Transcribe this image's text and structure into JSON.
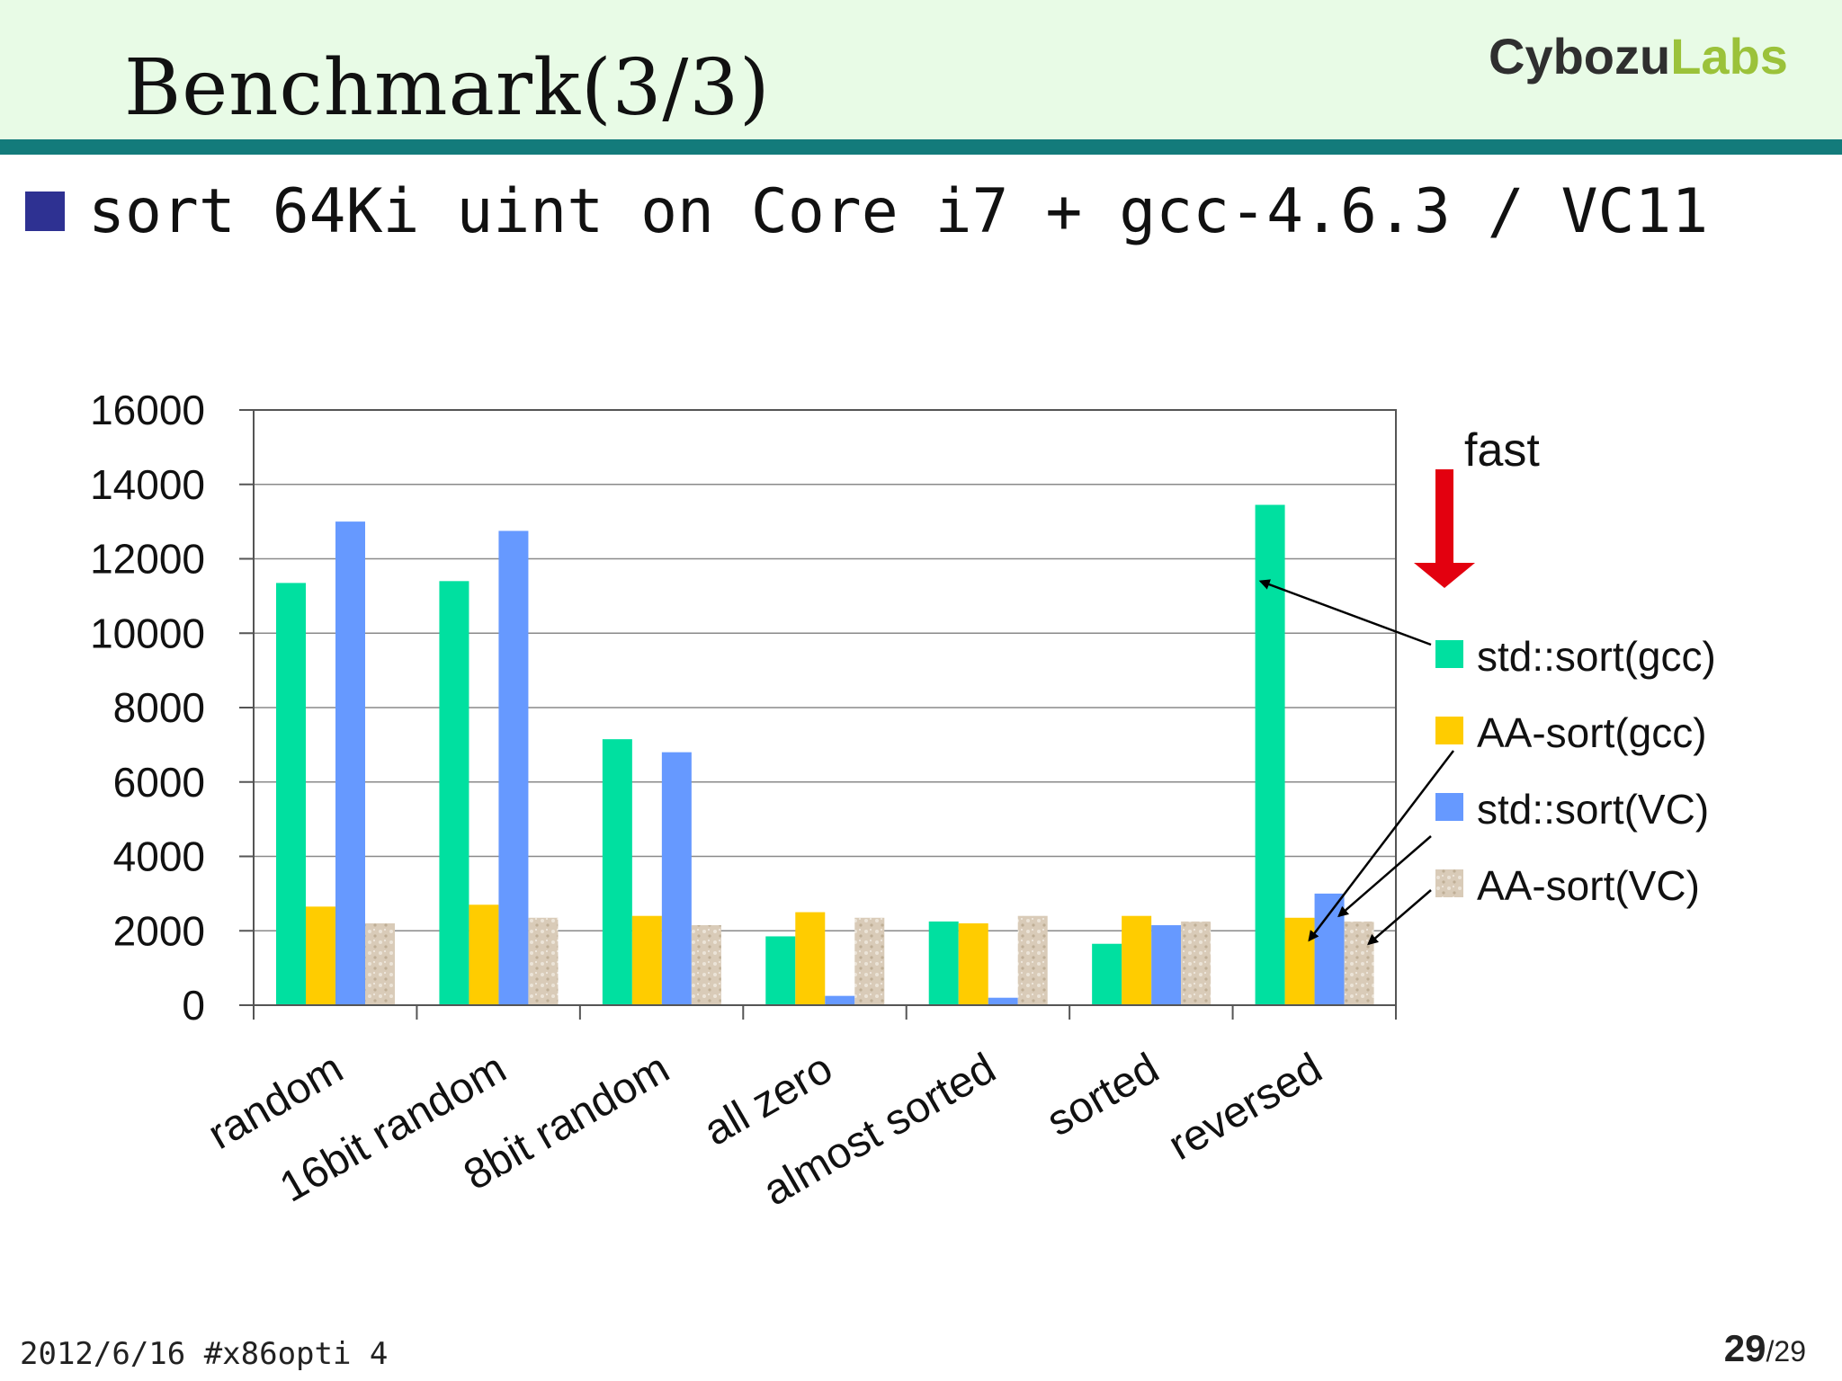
{
  "slide": {
    "title": "Benchmark(3/3)",
    "logo_main": "Cybozu",
    "logo_accent": "Labs",
    "bullet": "sort 64Ki uint on Core i7 + gcc-4.6.3 / VC11",
    "footer_left": "2012/6/16 #x86opti 4",
    "page_current": "29",
    "page_total": "/29"
  },
  "colors": {
    "header_bg": "#e8fbe6",
    "rule": "#137b7b",
    "bullet": "#2e3192",
    "arrow": "#e3000f"
  },
  "chart_data": {
    "type": "bar",
    "categories": [
      "random",
      "16bit random",
      "8bit random",
      "all zero",
      "almost sorted",
      "sorted",
      "reversed"
    ],
    "series": [
      {
        "name": "std::sort(gcc)",
        "color": "#00e0a0",
        "values": [
          11350,
          11400,
          7150,
          1850,
          2250,
          1650,
          13450
        ]
      },
      {
        "name": "AA-sort(gcc)",
        "color": "#ffcc00",
        "values": [
          2650,
          2700,
          2400,
          2500,
          2200,
          2400,
          2350
        ]
      },
      {
        "name": "std::sort(VC)",
        "color": "#6699ff",
        "values": [
          13000,
          12750,
          6800,
          250,
          200,
          2150,
          3000
        ]
      },
      {
        "name": "AA-sort(VC)",
        "color": "#d9cbb8",
        "values": [
          2200,
          2350,
          2150,
          2350,
          2400,
          2250,
          2250
        ]
      }
    ],
    "ylim": [
      0,
      16000
    ],
    "yticks": [
      "0",
      "2000",
      "4000",
      "6000",
      "8000",
      "10000",
      "12000",
      "14000",
      "16000"
    ],
    "grid": true,
    "legend": "right",
    "annotation": "fast"
  }
}
